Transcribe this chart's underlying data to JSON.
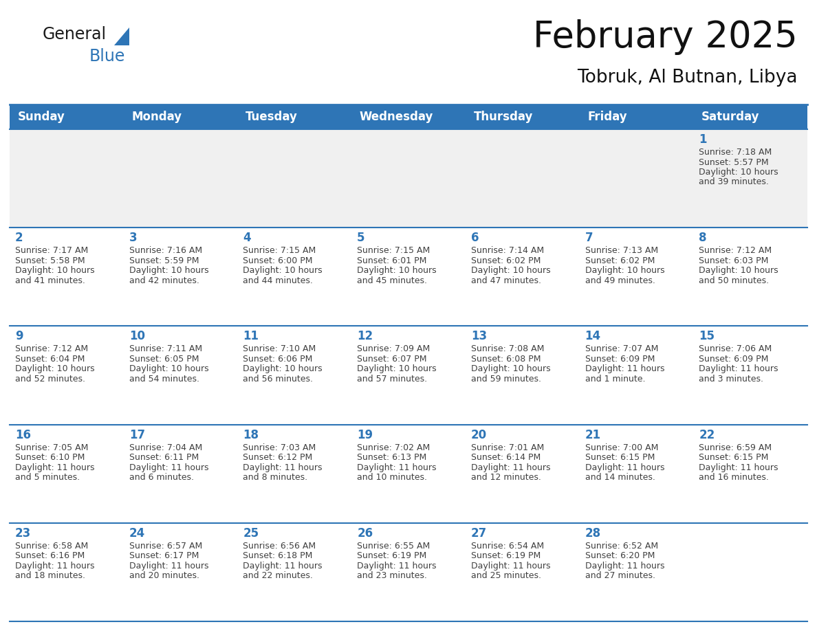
{
  "title": "February 2025",
  "subtitle": "Tobruk, Al Butnan, Libya",
  "header_color": "#2E75B6",
  "header_text_color": "#FFFFFF",
  "day_names": [
    "Sunday",
    "Monday",
    "Tuesday",
    "Wednesday",
    "Thursday",
    "Friday",
    "Saturday"
  ],
  "background_color": "#FFFFFF",
  "separator_color": "#2E75B6",
  "date_color": "#2E75B6",
  "info_color": "#404040",
  "logo_general_color": "#1A1A1A",
  "logo_blue_color": "#2E75B6",
  "days_data": [
    {
      "day": 1,
      "col": 6,
      "row": 0,
      "sunrise": "7:18 AM",
      "sunset": "5:57 PM",
      "daylight": "10 hours and 39 minutes."
    },
    {
      "day": 2,
      "col": 0,
      "row": 1,
      "sunrise": "7:17 AM",
      "sunset": "5:58 PM",
      "daylight": "10 hours and 41 minutes."
    },
    {
      "day": 3,
      "col": 1,
      "row": 1,
      "sunrise": "7:16 AM",
      "sunset": "5:59 PM",
      "daylight": "10 hours and 42 minutes."
    },
    {
      "day": 4,
      "col": 2,
      "row": 1,
      "sunrise": "7:15 AM",
      "sunset": "6:00 PM",
      "daylight": "10 hours and 44 minutes."
    },
    {
      "day": 5,
      "col": 3,
      "row": 1,
      "sunrise": "7:15 AM",
      "sunset": "6:01 PM",
      "daylight": "10 hours and 45 minutes."
    },
    {
      "day": 6,
      "col": 4,
      "row": 1,
      "sunrise": "7:14 AM",
      "sunset": "6:02 PM",
      "daylight": "10 hours and 47 minutes."
    },
    {
      "day": 7,
      "col": 5,
      "row": 1,
      "sunrise": "7:13 AM",
      "sunset": "6:02 PM",
      "daylight": "10 hours and 49 minutes."
    },
    {
      "day": 8,
      "col": 6,
      "row": 1,
      "sunrise": "7:12 AM",
      "sunset": "6:03 PM",
      "daylight": "10 hours and 50 minutes."
    },
    {
      "day": 9,
      "col": 0,
      "row": 2,
      "sunrise": "7:12 AM",
      "sunset": "6:04 PM",
      "daylight": "10 hours and 52 minutes."
    },
    {
      "day": 10,
      "col": 1,
      "row": 2,
      "sunrise": "7:11 AM",
      "sunset": "6:05 PM",
      "daylight": "10 hours and 54 minutes."
    },
    {
      "day": 11,
      "col": 2,
      "row": 2,
      "sunrise": "7:10 AM",
      "sunset": "6:06 PM",
      "daylight": "10 hours and 56 minutes."
    },
    {
      "day": 12,
      "col": 3,
      "row": 2,
      "sunrise": "7:09 AM",
      "sunset": "6:07 PM",
      "daylight": "10 hours and 57 minutes."
    },
    {
      "day": 13,
      "col": 4,
      "row": 2,
      "sunrise": "7:08 AM",
      "sunset": "6:08 PM",
      "daylight": "10 hours and 59 minutes."
    },
    {
      "day": 14,
      "col": 5,
      "row": 2,
      "sunrise": "7:07 AM",
      "sunset": "6:09 PM",
      "daylight": "11 hours and 1 minute."
    },
    {
      "day": 15,
      "col": 6,
      "row": 2,
      "sunrise": "7:06 AM",
      "sunset": "6:09 PM",
      "daylight": "11 hours and 3 minutes."
    },
    {
      "day": 16,
      "col": 0,
      "row": 3,
      "sunrise": "7:05 AM",
      "sunset": "6:10 PM",
      "daylight": "11 hours and 5 minutes."
    },
    {
      "day": 17,
      "col": 1,
      "row": 3,
      "sunrise": "7:04 AM",
      "sunset": "6:11 PM",
      "daylight": "11 hours and 6 minutes."
    },
    {
      "day": 18,
      "col": 2,
      "row": 3,
      "sunrise": "7:03 AM",
      "sunset": "6:12 PM",
      "daylight": "11 hours and 8 minutes."
    },
    {
      "day": 19,
      "col": 3,
      "row": 3,
      "sunrise": "7:02 AM",
      "sunset": "6:13 PM",
      "daylight": "11 hours and 10 minutes."
    },
    {
      "day": 20,
      "col": 4,
      "row": 3,
      "sunrise": "7:01 AM",
      "sunset": "6:14 PM",
      "daylight": "11 hours and 12 minutes."
    },
    {
      "day": 21,
      "col": 5,
      "row": 3,
      "sunrise": "7:00 AM",
      "sunset": "6:15 PM",
      "daylight": "11 hours and 14 minutes."
    },
    {
      "day": 22,
      "col": 6,
      "row": 3,
      "sunrise": "6:59 AM",
      "sunset": "6:15 PM",
      "daylight": "11 hours and 16 minutes."
    },
    {
      "day": 23,
      "col": 0,
      "row": 4,
      "sunrise": "6:58 AM",
      "sunset": "6:16 PM",
      "daylight": "11 hours and 18 minutes."
    },
    {
      "day": 24,
      "col": 1,
      "row": 4,
      "sunrise": "6:57 AM",
      "sunset": "6:17 PM",
      "daylight": "11 hours and 20 minutes."
    },
    {
      "day": 25,
      "col": 2,
      "row": 4,
      "sunrise": "6:56 AM",
      "sunset": "6:18 PM",
      "daylight": "11 hours and 22 minutes."
    },
    {
      "day": 26,
      "col": 3,
      "row": 4,
      "sunrise": "6:55 AM",
      "sunset": "6:19 PM",
      "daylight": "11 hours and 23 minutes."
    },
    {
      "day": 27,
      "col": 4,
      "row": 4,
      "sunrise": "6:54 AM",
      "sunset": "6:19 PM",
      "daylight": "11 hours and 25 minutes."
    },
    {
      "day": 28,
      "col": 5,
      "row": 4,
      "sunrise": "6:52 AM",
      "sunset": "6:20 PM",
      "daylight": "11 hours and 27 minutes."
    }
  ],
  "num_rows": 5,
  "num_cols": 7,
  "title_fontsize": 38,
  "subtitle_fontsize": 19,
  "day_name_fontsize": 12,
  "date_fontsize": 12,
  "info_fontsize": 9.0
}
